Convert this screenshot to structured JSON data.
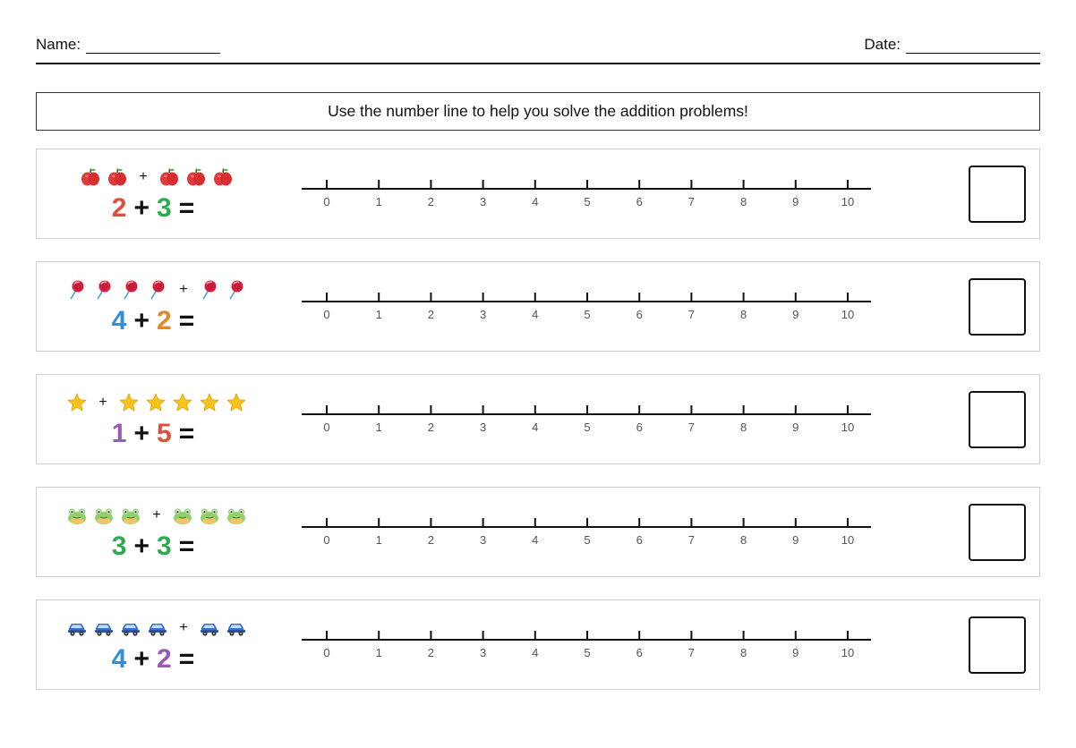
{
  "header": {
    "name_label": "Name:",
    "date_label": "Date:"
  },
  "instructions": "Use the number line to help you solve the addition problems!",
  "number_line": {
    "min": 0,
    "max": 10,
    "ticks": [
      "0",
      "1",
      "2",
      "3",
      "4",
      "5",
      "6",
      "7",
      "8",
      "9",
      "10"
    ]
  },
  "colors": {
    "red": "#e04e3c",
    "green": "#2eaa4f",
    "blue": "#2f8fd8",
    "orange": "#e8862a",
    "purple": "#9b59b6"
  },
  "problems": [
    {
      "icon": "apple-icon",
      "a": 2,
      "b": 3,
      "a_text": "2",
      "b_text": "3",
      "a_color": "#e04e3c",
      "b_color": "#2eaa4f",
      "plus": "+",
      "equals": "="
    },
    {
      "icon": "lollipop-icon",
      "a": 4,
      "b": 2,
      "a_text": "4",
      "b_text": "2",
      "a_color": "#2f8fd8",
      "b_color": "#e8862a",
      "plus": "+",
      "equals": "="
    },
    {
      "icon": "star-icon",
      "a": 1,
      "b": 5,
      "a_text": "1",
      "b_text": "5",
      "a_color": "#9b59b6",
      "b_color": "#e04e3c",
      "plus": "+",
      "equals": "="
    },
    {
      "icon": "frog-icon",
      "a": 3,
      "b": 3,
      "a_text": "3",
      "b_text": "3",
      "a_color": "#2eaa4f",
      "b_color": "#2eaa4f",
      "plus": "+",
      "equals": "="
    },
    {
      "icon": "car-icon",
      "a": 4,
      "b": 2,
      "a_text": "4",
      "b_text": "2",
      "a_color": "#2f8fd8",
      "b_color": "#9b59b6",
      "plus": "+",
      "equals": "="
    }
  ]
}
